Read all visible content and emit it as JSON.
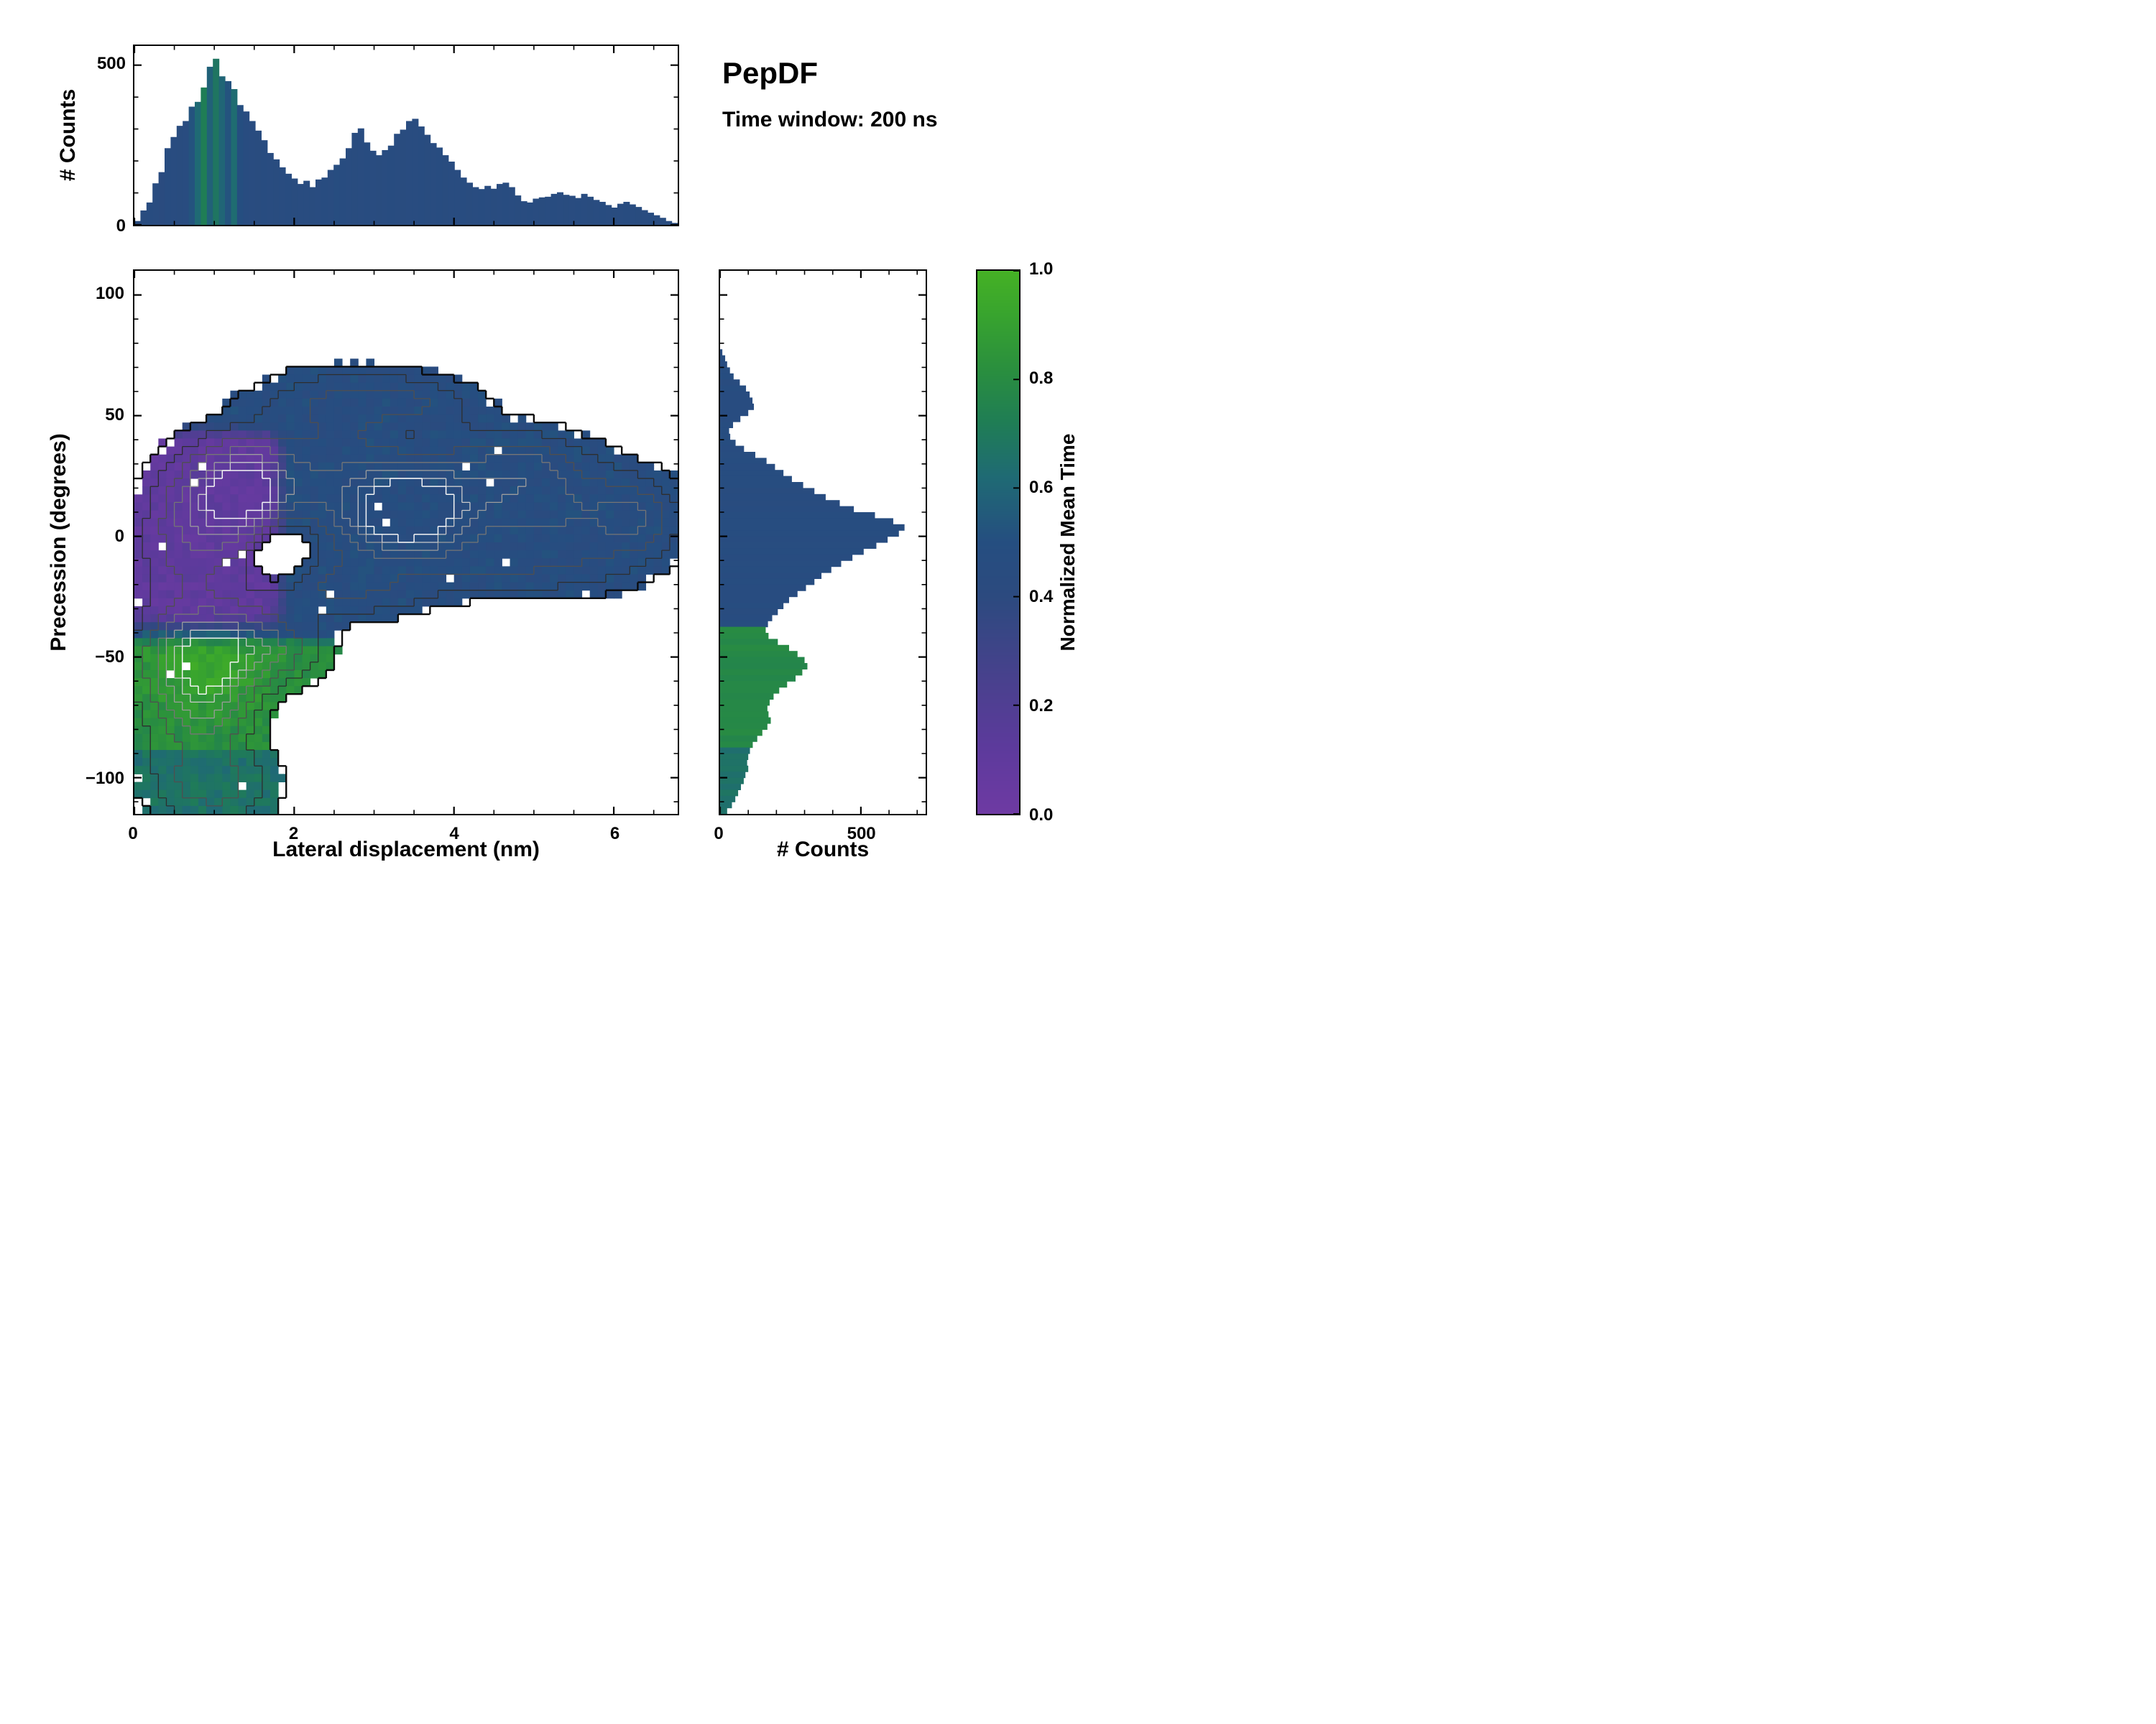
{
  "figure": {
    "background": "#ffffff",
    "spine_color": "#000000",
    "annotations": {
      "title": "PepDF",
      "subtitle": "Time window: 200 ns"
    }
  },
  "colormap": [
    {
      "t": 0.0,
      "color": "#6e3aa3"
    },
    {
      "t": 0.12,
      "color": "#5d3a9c"
    },
    {
      "t": 0.25,
      "color": "#48418d"
    },
    {
      "t": 0.4,
      "color": "#2c4a7f"
    },
    {
      "t": 0.5,
      "color": "#254e80"
    },
    {
      "t": 0.62,
      "color": "#1f6a74"
    },
    {
      "t": 0.72,
      "color": "#1f7d55"
    },
    {
      "t": 0.82,
      "color": "#2a8f3e"
    },
    {
      "t": 0.92,
      "color": "#38a42e"
    },
    {
      "t": 1.0,
      "color": "#45b125"
    }
  ],
  "chart_data": [
    {
      "id": "top_histogram",
      "type": "bar",
      "orientation": "vertical",
      "ylabel": "# Counts",
      "xlim": [
        0,
        6.8
      ],
      "ylim": [
        0,
        560
      ],
      "yticks": [
        0,
        500
      ],
      "yticklabels": [
        "0",
        "500"
      ],
      "yminor": [
        100,
        200,
        300,
        400
      ],
      "xticks": [
        0,
        2,
        4,
        6
      ],
      "xminor": [
        0.5,
        1,
        1.5,
        2.5,
        3,
        3.5,
        4.5,
        5,
        5.5,
        6.5
      ],
      "bin_width": 0.0756,
      "values": [
        12,
        45,
        70,
        130,
        165,
        240,
        275,
        310,
        325,
        370,
        385,
        430,
        495,
        520,
        465,
        450,
        425,
        375,
        355,
        325,
        295,
        265,
        225,
        205,
        180,
        160,
        145,
        128,
        138,
        118,
        142,
        148,
        172,
        188,
        208,
        240,
        288,
        302,
        258,
        232,
        218,
        234,
        248,
        285,
        298,
        325,
        332,
        308,
        282,
        256,
        242,
        218,
        198,
        172,
        148,
        132,
        118,
        112,
        122,
        113,
        128,
        132,
        118,
        92,
        74,
        70,
        82,
        86,
        88,
        97,
        102,
        94,
        91,
        84,
        97,
        88,
        78,
        72,
        62,
        54,
        66,
        72,
        64,
        56,
        46,
        38,
        30,
        22,
        12,
        6
      ],
      "mean_time": [
        0.45,
        0.44,
        0.46,
        0.45,
        0.43,
        0.46,
        0.45,
        0.44,
        0.45,
        0.52,
        0.62,
        0.72,
        0.58,
        0.68,
        0.6,
        0.52,
        0.63,
        0.5,
        0.46,
        0.45,
        0.44,
        0.46,
        0.45,
        0.44,
        0.45,
        0.46,
        0.44,
        0.45,
        0.45,
        0.44,
        0.45,
        0.46,
        0.45,
        0.47,
        0.46,
        0.45,
        0.44,
        0.45,
        0.46,
        0.45,
        0.44,
        0.45,
        0.46,
        0.45,
        0.44,
        0.45,
        0.45,
        0.46,
        0.44,
        0.45,
        0.46,
        0.44,
        0.45,
        0.45,
        0.46,
        0.44,
        0.45,
        0.46,
        0.45,
        0.44,
        0.45,
        0.46,
        0.45,
        0.44,
        0.45,
        0.46,
        0.45,
        0.44,
        0.45,
        0.46,
        0.45,
        0.44,
        0.45,
        0.46,
        0.45,
        0.44,
        0.45,
        0.46,
        0.45,
        0.44,
        0.45,
        0.46,
        0.45,
        0.44,
        0.45,
        0.46,
        0.45,
        0.44,
        0.45,
        0.46
      ]
    },
    {
      "id": "main_heatmap",
      "type": "heatmap",
      "xlabel": "Lateral displacement (nm)",
      "ylabel": "Precession (degrees)",
      "xlim": [
        0,
        6.8
      ],
      "ylim": [
        -115,
        110
      ],
      "xticks": [
        0,
        2,
        4,
        6
      ],
      "xticklabels": [
        "0",
        "2",
        "4",
        "6"
      ],
      "xminor": [
        0.5,
        1,
        1.5,
        2.5,
        3,
        3.5,
        4.5,
        5,
        5.5,
        6.5
      ],
      "yticks": [
        -100,
        -50,
        0,
        50,
        100
      ],
      "yticklabels": [
        "−100",
        "−50",
        "0",
        "50",
        "100"
      ],
      "yminor": [
        -110,
        -90,
        -80,
        -70,
        -60,
        -40,
        -30,
        -20,
        -10,
        10,
        20,
        30,
        40,
        60,
        70,
        80,
        90
      ],
      "grid_nx": 68,
      "grid_ny": 68,
      "mask_threshold": 0.16,
      "speckle_fraction": 0.012,
      "density_blobs": [
        {
          "x": 1.35,
          "y": 18,
          "sx": 0.45,
          "sy": 14,
          "amp": 1.0
        },
        {
          "x": 3.4,
          "y": 8,
          "sx": 0.55,
          "sy": 13,
          "amp": 1.15
        },
        {
          "x": 2.5,
          "y": 25,
          "sx": 0.9,
          "sy": 18,
          "amp": 0.55
        },
        {
          "x": 0.9,
          "y": -50,
          "sx": 0.45,
          "sy": 13,
          "amp": 0.95
        },
        {
          "x": 0.95,
          "y": -72,
          "sx": 0.4,
          "sy": 10,
          "amp": 0.55
        },
        {
          "x": 1.0,
          "y": -102,
          "sx": 0.55,
          "sy": 13,
          "amp": 0.6
        },
        {
          "x": 0.7,
          "y": 0,
          "sx": 0.5,
          "sy": 22,
          "amp": 0.55
        },
        {
          "x": 0.35,
          "y": -60,
          "sx": 0.45,
          "sy": 25,
          "amp": 0.3
        },
        {
          "x": 2.6,
          "y": 57,
          "sx": 0.75,
          "sy": 10,
          "amp": 0.4
        },
        {
          "x": 3.6,
          "y": 55,
          "sx": 0.6,
          "sy": 8,
          "amp": 0.3
        },
        {
          "x": 4.6,
          "y": 22,
          "sx": 0.8,
          "sy": 14,
          "amp": 0.5
        },
        {
          "x": 4.9,
          "y": 33,
          "sx": 0.5,
          "sy": 9,
          "amp": 0.25
        },
        {
          "x": 5.5,
          "y": 5,
          "sx": 0.9,
          "sy": 16,
          "amp": 0.5
        },
        {
          "x": 6.3,
          "y": 8,
          "sx": 0.35,
          "sy": 12,
          "amp": 0.35
        },
        {
          "x": 2.3,
          "y": -18,
          "sx": 0.55,
          "sy": 10,
          "amp": 0.4
        },
        {
          "x": 3.2,
          "y": -25,
          "sx": 0.6,
          "sy": 8,
          "amp": 0.3
        },
        {
          "x": 4.3,
          "y": -15,
          "sx": 0.5,
          "sy": 9,
          "amp": 0.25
        },
        {
          "x": 5.3,
          "y": -15,
          "sx": 0.6,
          "sy": 8,
          "amp": 0.2
        },
        {
          "x": 1.6,
          "y": -40,
          "sx": 0.5,
          "sy": 10,
          "amp": 0.4
        },
        {
          "x": 1.8,
          "y": -52,
          "sx": 0.5,
          "sy": 9,
          "amp": 0.35
        },
        {
          "x": 1.85,
          "y": -6,
          "sx": 0.28,
          "sy": 9,
          "amp": -0.55
        },
        {
          "x": 3.35,
          "y": 44,
          "sx": 0.3,
          "sy": 6,
          "amp": -0.15
        },
        {
          "x": 4.2,
          "y": -38,
          "sx": 0.5,
          "sy": 8,
          "amp": -0.15
        }
      ],
      "contour_levels": [
        0.16,
        0.32,
        0.5,
        0.68,
        0.85,
        1.0,
        1.12
      ],
      "contour_colors": [
        "#0a0a0a",
        "#2e2e2e",
        "#4f4f4f",
        "#757575",
        "#9c9c9c",
        "#cacaca",
        "#f5f5f5"
      ],
      "contour_widths": [
        2.4,
        1.3,
        1.3,
        1.3,
        1.3,
        1.3,
        1.5
      ],
      "mean_time_field": {
        "purple_value": 0.1,
        "blue_value": 0.47,
        "green_value": 0.8,
        "teal_value": 0.66,
        "purple_x_max": 1.95,
        "purple_y_max": 47,
        "green_y_max": -40,
        "teal_y_max": -88,
        "noise": 0.05,
        "green_hotspot": {
          "x": 0.9,
          "y": -55,
          "sx": 0.55,
          "sy": 13,
          "boost": 0.13
        }
      }
    },
    {
      "id": "right_histogram",
      "type": "bar",
      "orientation": "horizontal",
      "xlabel": "# Counts",
      "xlim": [
        0,
        730
      ],
      "xticks": [
        0,
        500
      ],
      "xticklabels": [
        "0",
        "500"
      ],
      "xminor": [
        100,
        200,
        300,
        400,
        600,
        700
      ],
      "ylim": [
        -115,
        110
      ],
      "bin_start": 110,
      "bin_step": -2.5,
      "values": [
        0,
        0,
        0,
        0,
        0,
        0,
        0,
        0,
        0,
        0,
        0,
        0,
        0,
        8,
        18,
        25,
        35,
        48,
        70,
        92,
        105,
        115,
        120,
        100,
        72,
        46,
        32,
        36,
        55,
        85,
        125,
        165,
        195,
        225,
        255,
        295,
        335,
        375,
        425,
        475,
        550,
        615,
        655,
        635,
        595,
        555,
        510,
        470,
        430,
        395,
        360,
        335,
        305,
        275,
        245,
        225,
        205,
        185,
        170,
        162,
        172,
        205,
        245,
        275,
        300,
        310,
        292,
        268,
        238,
        210,
        190,
        176,
        168,
        172,
        180,
        168,
        150,
        132,
        116,
        106,
        100,
        96,
        100,
        90,
        84,
        74,
        64,
        54,
        42,
        25
      ],
      "mean_time_rule": {
        "blue": 0.46,
        "green": 0.78,
        "teal": 0.66,
        "green_below_y": -38,
        "teal_below_y": -88
      }
    },
    {
      "id": "colorbar",
      "type": "colorbar",
      "label": "Normalized Mean Time",
      "lim": [
        0,
        1
      ],
      "ticks": [
        0,
        0.2,
        0.4,
        0.6,
        0.8,
        1
      ],
      "ticklabels": [
        "0.0",
        "0.2",
        "0.4",
        "0.6",
        "0.8",
        "1.0"
      ]
    }
  ]
}
